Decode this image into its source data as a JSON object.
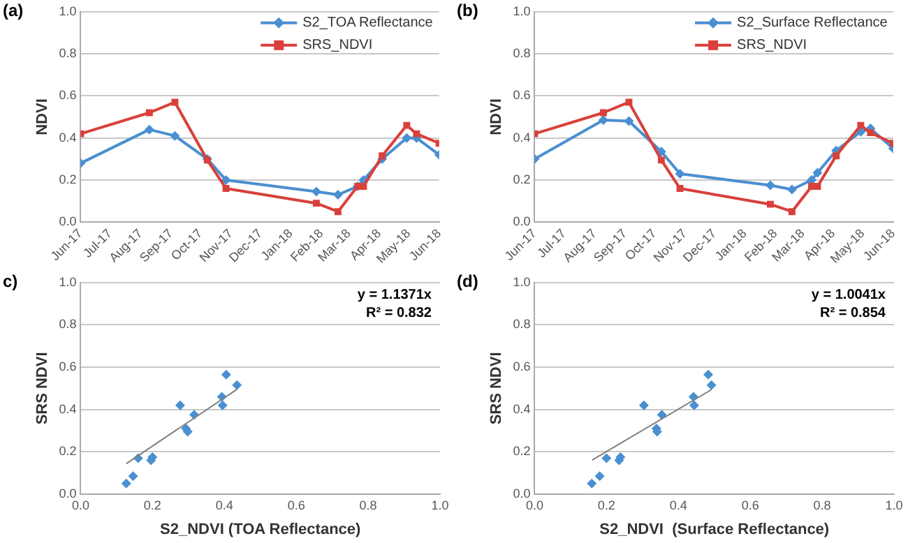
{
  "chart_data": [
    {
      "type": "line",
      "title": "(a)",
      "ylabel": "NDVI",
      "x": [
        "2017-06-01",
        "2017-08-10",
        "2017-09-05",
        "2017-10-08",
        "2017-10-27",
        "2018-01-27",
        "2018-02-18",
        "2018-03-10",
        "2018-03-16",
        "2018-04-04",
        "2018-04-29",
        "2018-05-09",
        "2018-06-01"
      ],
      "series": [
        {
          "name": "S2_TOA Reflectance",
          "color": "#4a8fd0",
          "marker": "diamond",
          "values": [
            0.28,
            0.44,
            0.41,
            0.3,
            0.2,
            0.145,
            0.13,
            0.17,
            0.2,
            0.3,
            0.4,
            0.4,
            0.32
          ]
        },
        {
          "name": "SRS_NDVI",
          "color": "#d9403b",
          "marker": "square",
          "values": [
            0.42,
            0.52,
            0.57,
            0.295,
            0.16,
            0.09,
            0.05,
            0.17,
            0.17,
            0.315,
            0.46,
            0.42,
            0.375
          ]
        }
      ],
      "xlim": [
        "2017-06",
        "2018-06"
      ],
      "xticks": [
        {
          "value": "2017-06",
          "label": "Jun-17"
        },
        {
          "value": "2017-07",
          "label": "Jul-17"
        },
        {
          "value": "2017-08",
          "label": "Aug-17"
        },
        {
          "value": "2017-09",
          "label": "Sep-17"
        },
        {
          "value": "2017-10",
          "label": "Oct-17"
        },
        {
          "value": "2017-11",
          "label": "Nov-17"
        },
        {
          "value": "2017-12",
          "label": "Dec-17"
        },
        {
          "value": "2018-01",
          "label": "Jan-18"
        },
        {
          "value": "2018-02",
          "label": "Feb-18"
        },
        {
          "value": "2018-03",
          "label": "Mar-18"
        },
        {
          "value": "2018-04",
          "label": "Apr-18"
        },
        {
          "value": "2018-05",
          "label": "May-18"
        },
        {
          "value": "2018-06",
          "label": "Jun-18"
        }
      ],
      "ylim": [
        0,
        1
      ],
      "yticks": [
        {
          "value": 0,
          "label": "0.0"
        },
        {
          "value": 0.2,
          "label": "0.2"
        },
        {
          "value": 0.4,
          "label": "0.4"
        },
        {
          "value": 0.6,
          "label": "0.6"
        },
        {
          "value": 0.8,
          "label": "0.8"
        },
        {
          "value": 1,
          "label": "1.0"
        }
      ],
      "grid": "y",
      "legend": "top right",
      "line_style": "solid"
    },
    {
      "type": "line",
      "title": "(b)",
      "ylabel": "NDVI",
      "x": [
        "2017-06-01",
        "2017-08-10",
        "2017-09-05",
        "2017-10-08",
        "2017-10-27",
        "2018-01-27",
        "2018-02-18",
        "2018-03-10",
        "2018-03-16",
        "2018-04-04",
        "2018-04-29",
        "2018-05-09",
        "2018-06-01"
      ],
      "series": [
        {
          "name": "S2_Surface Reflectance",
          "color": "#4a8fd0",
          "marker": "diamond",
          "values": [
            0.3,
            0.485,
            0.48,
            0.335,
            0.23,
            0.175,
            0.155,
            0.2,
            0.235,
            0.34,
            0.43,
            0.445,
            0.35
          ]
        },
        {
          "name": "SRS_NDVI",
          "color": "#d9403b",
          "marker": "square",
          "values": [
            0.42,
            0.52,
            0.57,
            0.295,
            0.16,
            0.085,
            0.05,
            0.17,
            0.17,
            0.315,
            0.46,
            0.425,
            0.375
          ]
        }
      ],
      "xlim": [
        "2017-06",
        "2018-06"
      ],
      "xticks": [
        {
          "value": "2017-06",
          "label": "Jun-17"
        },
        {
          "value": "2017-07",
          "label": "Jul-17"
        },
        {
          "value": "2017-08",
          "label": "Aug-17"
        },
        {
          "value": "2017-09",
          "label": "Sep-17"
        },
        {
          "value": "2017-10",
          "label": "Oct-17"
        },
        {
          "value": "2017-11",
          "label": "Nov-17"
        },
        {
          "value": "2017-12",
          "label": "Dec-17"
        },
        {
          "value": "2018-01",
          "label": "Jan-18"
        },
        {
          "value": "2018-02",
          "label": "Feb-18"
        },
        {
          "value": "2018-03",
          "label": "Mar-18"
        },
        {
          "value": "2018-04",
          "label": "Apr-18"
        },
        {
          "value": "2018-05",
          "label": "May-18"
        },
        {
          "value": "2018-06",
          "label": "Jun-18"
        }
      ],
      "ylim": [
        0,
        1
      ],
      "yticks": [
        {
          "value": 0,
          "label": "0.0"
        },
        {
          "value": 0.2,
          "label": "0.2"
        },
        {
          "value": 0.4,
          "label": "0.4"
        },
        {
          "value": 0.6,
          "label": "0.6"
        },
        {
          "value": 0.8,
          "label": "0.8"
        },
        {
          "value": 1,
          "label": "1.0"
        }
      ],
      "grid": "y",
      "legend": "top right",
      "line_style": "solid"
    },
    {
      "type": "scatter",
      "title": "c)",
      "xlabel": "S2_NDVI (TOA Reflectance)",
      "ylabel": "SRS NDVI",
      "annotations": [
        "y = 1.1371x",
        "R² = 0.832"
      ],
      "series": [
        {
          "color": "#4a8fd0",
          "marker": "diamond",
          "x": [
            0.127,
            0.146,
            0.16,
            0.196,
            0.2,
            0.277,
            0.293,
            0.298,
            0.316,
            0.393,
            0.395,
            0.405,
            0.435
          ],
          "values": [
            0.05,
            0.085,
            0.17,
            0.16,
            0.175,
            0.42,
            0.31,
            0.295,
            0.375,
            0.46,
            0.42,
            0.565,
            0.515
          ]
        },
        {
          "type": "line",
          "color": "#808080",
          "marker": "none",
          "x": [
            0.127,
            0.435
          ],
          "values": [
            0.144,
            0.495
          ]
        }
      ],
      "xlim": [
        0,
        1
      ],
      "xticks": [
        {
          "value": 0,
          "label": "0.0"
        },
        {
          "value": 0.2,
          "label": "0.2"
        },
        {
          "value": 0.4,
          "label": "0.4"
        },
        {
          "value": 0.6,
          "label": "0.6"
        },
        {
          "value": 0.8,
          "label": "0.8"
        },
        {
          "value": 1,
          "label": "1.0"
        }
      ],
      "ylim": [
        0,
        1
      ],
      "yticks": [
        {
          "value": 0,
          "label": "0.0"
        },
        {
          "value": 0.2,
          "label": "0.2"
        },
        {
          "value": 0.4,
          "label": "0.4"
        },
        {
          "value": 0.6,
          "label": "0.6"
        },
        {
          "value": 0.8,
          "label": "0.8"
        },
        {
          "value": 1,
          "label": "1.0"
        }
      ],
      "grid": "y"
    },
    {
      "type": "scatter",
      "title": "(d)",
      "xlabel": "S2_NDVI  (Surface Reflectance)",
      "ylabel": "SRS NDVI",
      "annotations": [
        "y = 1.0041x",
        "R² = 0.854"
      ],
      "series": [
        {
          "color": "#4a8fd0",
          "marker": "diamond",
          "x": [
            0.159,
            0.181,
            0.2,
            0.235,
            0.239,
            0.304,
            0.339,
            0.341,
            0.354,
            0.442,
            0.444,
            0.483,
            0.492
          ],
          "values": [
            0.05,
            0.085,
            0.17,
            0.16,
            0.175,
            0.42,
            0.31,
            0.295,
            0.375,
            0.46,
            0.42,
            0.565,
            0.515
          ]
        },
        {
          "type": "line",
          "color": "#808080",
          "marker": "none",
          "x": [
            0.16,
            0.492
          ],
          "values": [
            0.161,
            0.494
          ]
        }
      ],
      "xlim": [
        0,
        1
      ],
      "xticks": [
        {
          "value": 0,
          "label": "0.0"
        },
        {
          "value": 0.2,
          "label": "0.2"
        },
        {
          "value": 0.4,
          "label": "0.4"
        },
        {
          "value": 0.6,
          "label": "0.6"
        },
        {
          "value": 0.8,
          "label": "0.8"
        },
        {
          "value": 1,
          "label": "1.0"
        }
      ],
      "ylim": [
        0,
        1
      ],
      "yticks": [
        {
          "value": 0,
          "label": "0.0"
        },
        {
          "value": 0.2,
          "label": "0.2"
        },
        {
          "value": 0.4,
          "label": "0.4"
        },
        {
          "value": 0.6,
          "label": "0.6"
        },
        {
          "value": 0.8,
          "label": "0.8"
        },
        {
          "value": 1,
          "label": "1.0"
        }
      ],
      "grid": "y"
    }
  ]
}
